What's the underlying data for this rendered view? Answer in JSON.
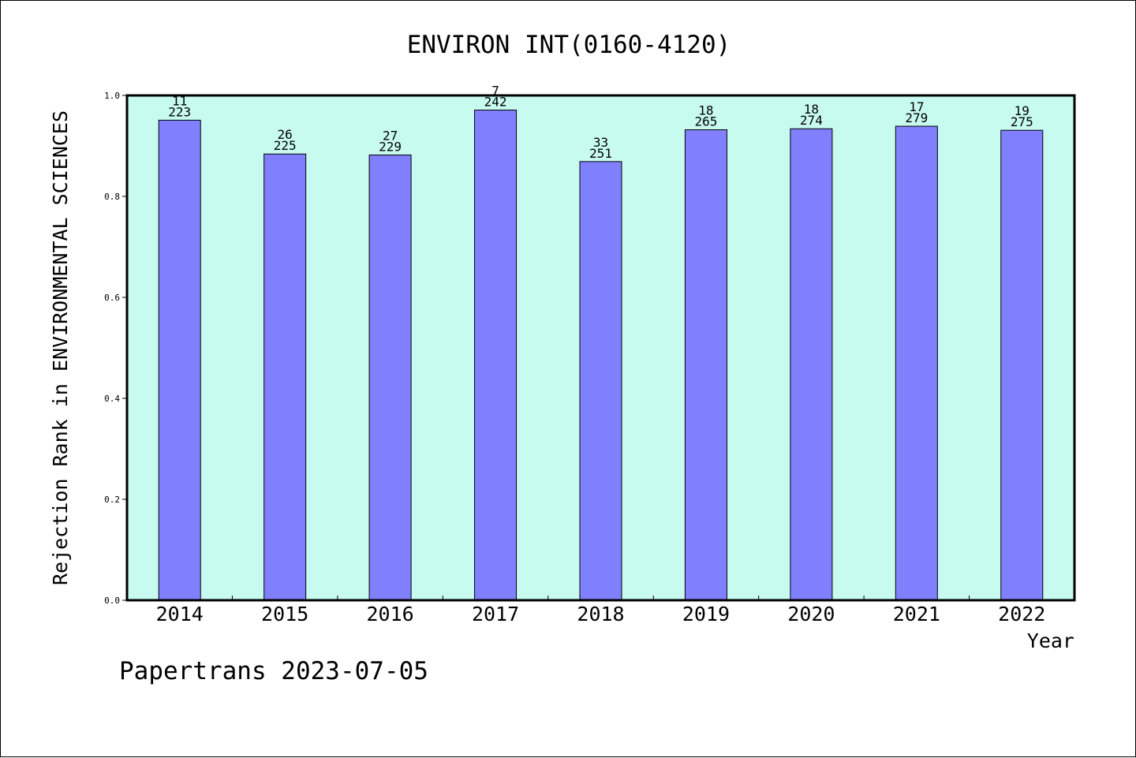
{
  "chart_data": {
    "type": "bar",
    "title": "ENVIRON INT(0160-4120)",
    "xlabel": "Year",
    "ylabel": "Rejection Rank in ENVIRONMENTAL SCIENCES",
    "ylim": [
      0,
      1.0
    ],
    "yticks": [
      "0.0",
      "0.2",
      "0.4",
      "0.6",
      "0.8",
      "1.0"
    ],
    "grid": false,
    "categories": [
      "2014",
      "2015",
      "2016",
      "2017",
      "2018",
      "2019",
      "2020",
      "2021",
      "2022"
    ],
    "values": [
      0.951,
      0.884,
      0.882,
      0.971,
      0.869,
      0.932,
      0.934,
      0.939,
      0.931
    ],
    "rank_labels": [
      "11",
      "26",
      "27",
      "7",
      "33",
      "18",
      "18",
      "17",
      "19"
    ],
    "total_labels": [
      "223",
      "225",
      "229",
      "242",
      "251",
      "265",
      "274",
      "279",
      "275"
    ],
    "colors": {
      "plot_background": "#c8fbef",
      "bar_fill": "#8080ff",
      "bar_stroke": "#000000"
    }
  },
  "footer": {
    "text": "Papertrans 2023-07-05"
  }
}
